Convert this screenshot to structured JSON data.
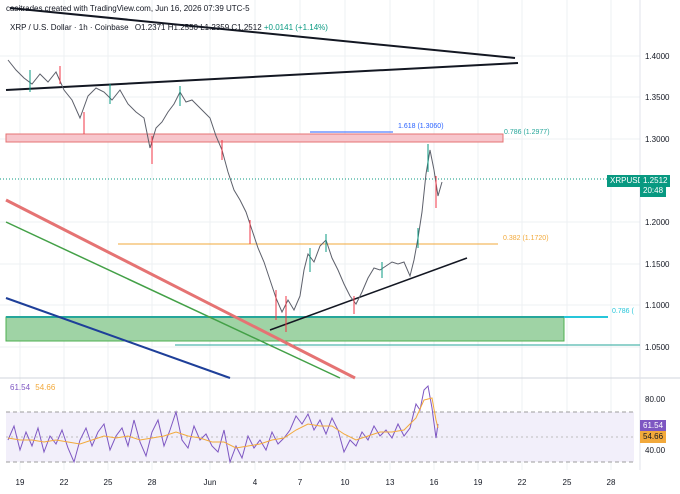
{
  "header": {
    "attribution": "casitrades created with TradingView.com, Jun 16, 2026 07:39 UTC-5",
    "symbol": "XRP / U.S. Dollar · 1h · Coinbase",
    "open": "O1.2371",
    "high": "H1.2550",
    "low": "L1.2359",
    "close": "C1.2512",
    "change": "+0.0141 (+1.14%)"
  },
  "price_axis": {
    "ticks": [
      "1.4000",
      "1.3500",
      "1.3000",
      "1.2000",
      "1.1500",
      "1.1000",
      "1.0500"
    ],
    "current_ticker": "XRPUSD",
    "current_price": "1.2512",
    "countdown": "20:48"
  },
  "annotations": {
    "fib_1618": "1.618 (1.3060)",
    "fib_0786_top": "0.786 (1.2977)",
    "fib_0382": "0.382 (1.1720)",
    "fib_0786_bottom": "0.786 ("
  },
  "rsi": {
    "value_a": "61.54",
    "value_b": "54.66",
    "ticks": [
      "80.00",
      "40.00"
    ],
    "tag_a": "61.54",
    "tag_b": "54.66"
  },
  "time_axis": {
    "ticks": [
      "19",
      "22",
      "25",
      "28",
      "Jun",
      "4",
      "7",
      "10",
      "13",
      "16",
      "19",
      "22",
      "25",
      "28"
    ]
  },
  "colors": {
    "up": "#089981",
    "down": "#f23645",
    "rsi": "#7e57c2",
    "rsi_ma": "#f2a93b",
    "resistance_zone": "#f7c6cc",
    "support_zone": "#9fd3a5"
  }
}
